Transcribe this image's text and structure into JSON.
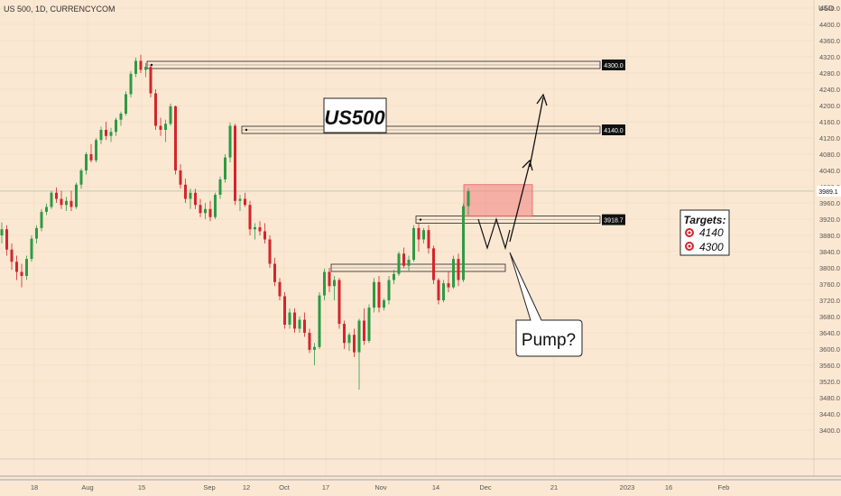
{
  "header": {
    "symbol_label": "US 500, 1D, CURRENCYCOM"
  },
  "axis": {
    "currency_label": "USD"
  },
  "colors": {
    "background": "#fbe8d2",
    "up": "#2e9a45",
    "down": "#d4252b",
    "grid": "#efd6bb",
    "axis_text": "#555555",
    "highlight_zone": "#f08080"
  },
  "chart_data": {
    "type": "candlestick",
    "title": "US500",
    "y_unit": "USD",
    "ylim": [
      3380,
      4500
    ],
    "y_ticks": [
      3400,
      3440,
      3480,
      3520,
      3560,
      3600,
      3640,
      3680,
      3720,
      3760,
      3800,
      3840,
      3880,
      3920,
      3960,
      4000,
      4040,
      4080,
      4120,
      4160,
      4200,
      4240,
      4280,
      4320,
      4360,
      4400,
      4440,
      4480
    ],
    "x_ticks": [
      "18",
      "Aug",
      "15",
      "Sep",
      "12",
      "Oct",
      "17",
      "Nov",
      "14",
      "Dec",
      "21",
      "2023",
      "16",
      "Feb"
    ],
    "current_price": 3989.1,
    "price_labels": [
      4300.0,
      4140.0,
      3918.7
    ],
    "resistance_levels": [
      4300.0,
      4140.0
    ],
    "support_levels": [
      3918.7,
      3800.0
    ],
    "annotations": {
      "title_box": "US500",
      "pump_label": "Pump?",
      "targets_title": "Targets:",
      "targets": [
        "4140",
        "4300"
      ]
    },
    "candles": [
      {
        "o": 3880,
        "h": 3912,
        "l": 3860,
        "c": 3895
      },
      {
        "o": 3895,
        "h": 3905,
        "l": 3830,
        "c": 3845
      },
      {
        "o": 3845,
        "h": 3860,
        "l": 3795,
        "c": 3815
      },
      {
        "o": 3815,
        "h": 3830,
        "l": 3770,
        "c": 3790
      },
      {
        "o": 3790,
        "h": 3810,
        "l": 3752,
        "c": 3780
      },
      {
        "o": 3780,
        "h": 3830,
        "l": 3770,
        "c": 3822
      },
      {
        "o": 3822,
        "h": 3880,
        "l": 3815,
        "c": 3872
      },
      {
        "o": 3872,
        "h": 3905,
        "l": 3860,
        "c": 3898
      },
      {
        "o": 3898,
        "h": 3945,
        "l": 3890,
        "c": 3938
      },
      {
        "o": 3938,
        "h": 3958,
        "l": 3930,
        "c": 3950
      },
      {
        "o": 3950,
        "h": 3990,
        "l": 3945,
        "c": 3985
      },
      {
        "o": 3985,
        "h": 3998,
        "l": 3960,
        "c": 3970
      },
      {
        "o": 3970,
        "h": 3990,
        "l": 3945,
        "c": 3955
      },
      {
        "o": 3955,
        "h": 3975,
        "l": 3940,
        "c": 3965
      },
      {
        "o": 3965,
        "h": 3990,
        "l": 3940,
        "c": 3950
      },
      {
        "o": 3950,
        "h": 4010,
        "l": 3945,
        "c": 4005
      },
      {
        "o": 4005,
        "h": 4045,
        "l": 3995,
        "c": 4040
      },
      {
        "o": 4040,
        "h": 4085,
        "l": 4030,
        "c": 4080
      },
      {
        "o": 4080,
        "h": 4105,
        "l": 4060,
        "c": 4065
      },
      {
        "o": 4065,
        "h": 4120,
        "l": 4060,
        "c": 4115
      },
      {
        "o": 4115,
        "h": 4148,
        "l": 4105,
        "c": 4140
      },
      {
        "o": 4140,
        "h": 4160,
        "l": 4115,
        "c": 4125
      },
      {
        "o": 4125,
        "h": 4145,
        "l": 4110,
        "c": 4135
      },
      {
        "o": 4135,
        "h": 4170,
        "l": 4125,
        "c": 4165
      },
      {
        "o": 4165,
        "h": 4185,
        "l": 4150,
        "c": 4180
      },
      {
        "o": 4180,
        "h": 4235,
        "l": 4175,
        "c": 4228
      },
      {
        "o": 4228,
        "h": 4285,
        "l": 4220,
        "c": 4278
      },
      {
        "o": 4278,
        "h": 4318,
        "l": 4270,
        "c": 4310
      },
      {
        "o": 4310,
        "h": 4325,
        "l": 4280,
        "c": 4288
      },
      {
        "o": 4288,
        "h": 4305,
        "l": 4270,
        "c": 4295
      },
      {
        "o": 4295,
        "h": 4300,
        "l": 4220,
        "c": 4230
      },
      {
        "o": 4230,
        "h": 4240,
        "l": 4140,
        "c": 4150
      },
      {
        "o": 4150,
        "h": 4170,
        "l": 4125,
        "c": 4140
      },
      {
        "o": 4140,
        "h": 4165,
        "l": 4110,
        "c": 4155
      },
      {
        "o": 4155,
        "h": 4205,
        "l": 4150,
        "c": 4198
      },
      {
        "o": 4198,
        "h": 4200,
        "l": 4030,
        "c": 4040
      },
      {
        "o": 4040,
        "h": 4055,
        "l": 3995,
        "c": 4005
      },
      {
        "o": 4005,
        "h": 4020,
        "l": 3960,
        "c": 3970
      },
      {
        "o": 3970,
        "h": 3995,
        "l": 3945,
        "c": 3985
      },
      {
        "o": 3985,
        "h": 3995,
        "l": 3945,
        "c": 3955
      },
      {
        "o": 3955,
        "h": 3970,
        "l": 3925,
        "c": 3935
      },
      {
        "o": 3935,
        "h": 3960,
        "l": 3920,
        "c": 3945
      },
      {
        "o": 3945,
        "h": 3965,
        "l": 3915,
        "c": 3925
      },
      {
        "o": 3925,
        "h": 3985,
        "l": 3920,
        "c": 3980
      },
      {
        "o": 3980,
        "h": 4025,
        "l": 3970,
        "c": 4018
      },
      {
        "o": 4018,
        "h": 4080,
        "l": 4010,
        "c": 4072
      },
      {
        "o": 4072,
        "h": 4158,
        "l": 4060,
        "c": 4150
      },
      {
        "o": 4150,
        "h": 4155,
        "l": 3955,
        "c": 3965
      },
      {
        "o": 3965,
        "h": 3980,
        "l": 3940,
        "c": 3970
      },
      {
        "o": 3970,
        "h": 3985,
        "l": 3950,
        "c": 3955
      },
      {
        "o": 3955,
        "h": 3965,
        "l": 3880,
        "c": 3895
      },
      {
        "o": 3895,
        "h": 3910,
        "l": 3870,
        "c": 3900
      },
      {
        "o": 3900,
        "h": 3915,
        "l": 3880,
        "c": 3890
      },
      {
        "o": 3890,
        "h": 3910,
        "l": 3860,
        "c": 3870
      },
      {
        "o": 3870,
        "h": 3880,
        "l": 3800,
        "c": 3810
      },
      {
        "o": 3810,
        "h": 3825,
        "l": 3755,
        "c": 3765
      },
      {
        "o": 3765,
        "h": 3775,
        "l": 3720,
        "c": 3730
      },
      {
        "o": 3730,
        "h": 3740,
        "l": 3650,
        "c": 3660
      },
      {
        "o": 3660,
        "h": 3700,
        "l": 3650,
        "c": 3690
      },
      {
        "o": 3690,
        "h": 3700,
        "l": 3640,
        "c": 3650
      },
      {
        "o": 3650,
        "h": 3680,
        "l": 3640,
        "c": 3672
      },
      {
        "o": 3672,
        "h": 3690,
        "l": 3630,
        "c": 3640
      },
      {
        "o": 3640,
        "h": 3650,
        "l": 3590,
        "c": 3598
      },
      {
        "o": 3598,
        "h": 3615,
        "l": 3560,
        "c": 3605
      },
      {
        "o": 3605,
        "h": 3740,
        "l": 3600,
        "c": 3732
      },
      {
        "o": 3732,
        "h": 3798,
        "l": 3720,
        "c": 3790
      },
      {
        "o": 3790,
        "h": 3800,
        "l": 3740,
        "c": 3755
      },
      {
        "o": 3755,
        "h": 3780,
        "l": 3720,
        "c": 3770
      },
      {
        "o": 3770,
        "h": 3775,
        "l": 3650,
        "c": 3662
      },
      {
        "o": 3662,
        "h": 3670,
        "l": 3600,
        "c": 3615
      },
      {
        "o": 3615,
        "h": 3640,
        "l": 3595,
        "c": 3635
      },
      {
        "o": 3635,
        "h": 3650,
        "l": 3580,
        "c": 3592
      },
      {
        "o": 3592,
        "h": 3675,
        "l": 3500,
        "c": 3670
      },
      {
        "o": 3670,
        "h": 3700,
        "l": 3610,
        "c": 3620
      },
      {
        "o": 3620,
        "h": 3710,
        "l": 3615,
        "c": 3702
      },
      {
        "o": 3702,
        "h": 3775,
        "l": 3690,
        "c": 3765
      },
      {
        "o": 3765,
        "h": 3780,
        "l": 3690,
        "c": 3702
      },
      {
        "o": 3702,
        "h": 3725,
        "l": 3695,
        "c": 3720
      },
      {
        "o": 3720,
        "h": 3780,
        "l": 3710,
        "c": 3770
      },
      {
        "o": 3770,
        "h": 3795,
        "l": 3760,
        "c": 3785
      },
      {
        "o": 3785,
        "h": 3840,
        "l": 3780,
        "c": 3835
      },
      {
        "o": 3835,
        "h": 3850,
        "l": 3800,
        "c": 3805
      },
      {
        "o": 3805,
        "h": 3830,
        "l": 3790,
        "c": 3820
      },
      {
        "o": 3820,
        "h": 3905,
        "l": 3815,
        "c": 3898
      },
      {
        "o": 3898,
        "h": 3912,
        "l": 3840,
        "c": 3870
      },
      {
        "o": 3870,
        "h": 3898,
        "l": 3860,
        "c": 3893
      },
      {
        "o": 3893,
        "h": 3905,
        "l": 3835,
        "c": 3848
      },
      {
        "o": 3848,
        "h": 3855,
        "l": 3760,
        "c": 3770
      },
      {
        "o": 3770,
        "h": 3775,
        "l": 3710,
        "c": 3720
      },
      {
        "o": 3720,
        "h": 3770,
        "l": 3715,
        "c": 3762
      },
      {
        "o": 3762,
        "h": 3790,
        "l": 3740,
        "c": 3752
      },
      {
        "o": 3752,
        "h": 3830,
        "l": 3748,
        "c": 3822
      },
      {
        "o": 3822,
        "h": 3835,
        "l": 3755,
        "c": 3770
      },
      {
        "o": 3770,
        "h": 3958,
        "l": 3765,
        "c": 3952
      },
      {
        "o": 3952,
        "h": 3995,
        "l": 3930,
        "c": 3989
      }
    ]
  }
}
